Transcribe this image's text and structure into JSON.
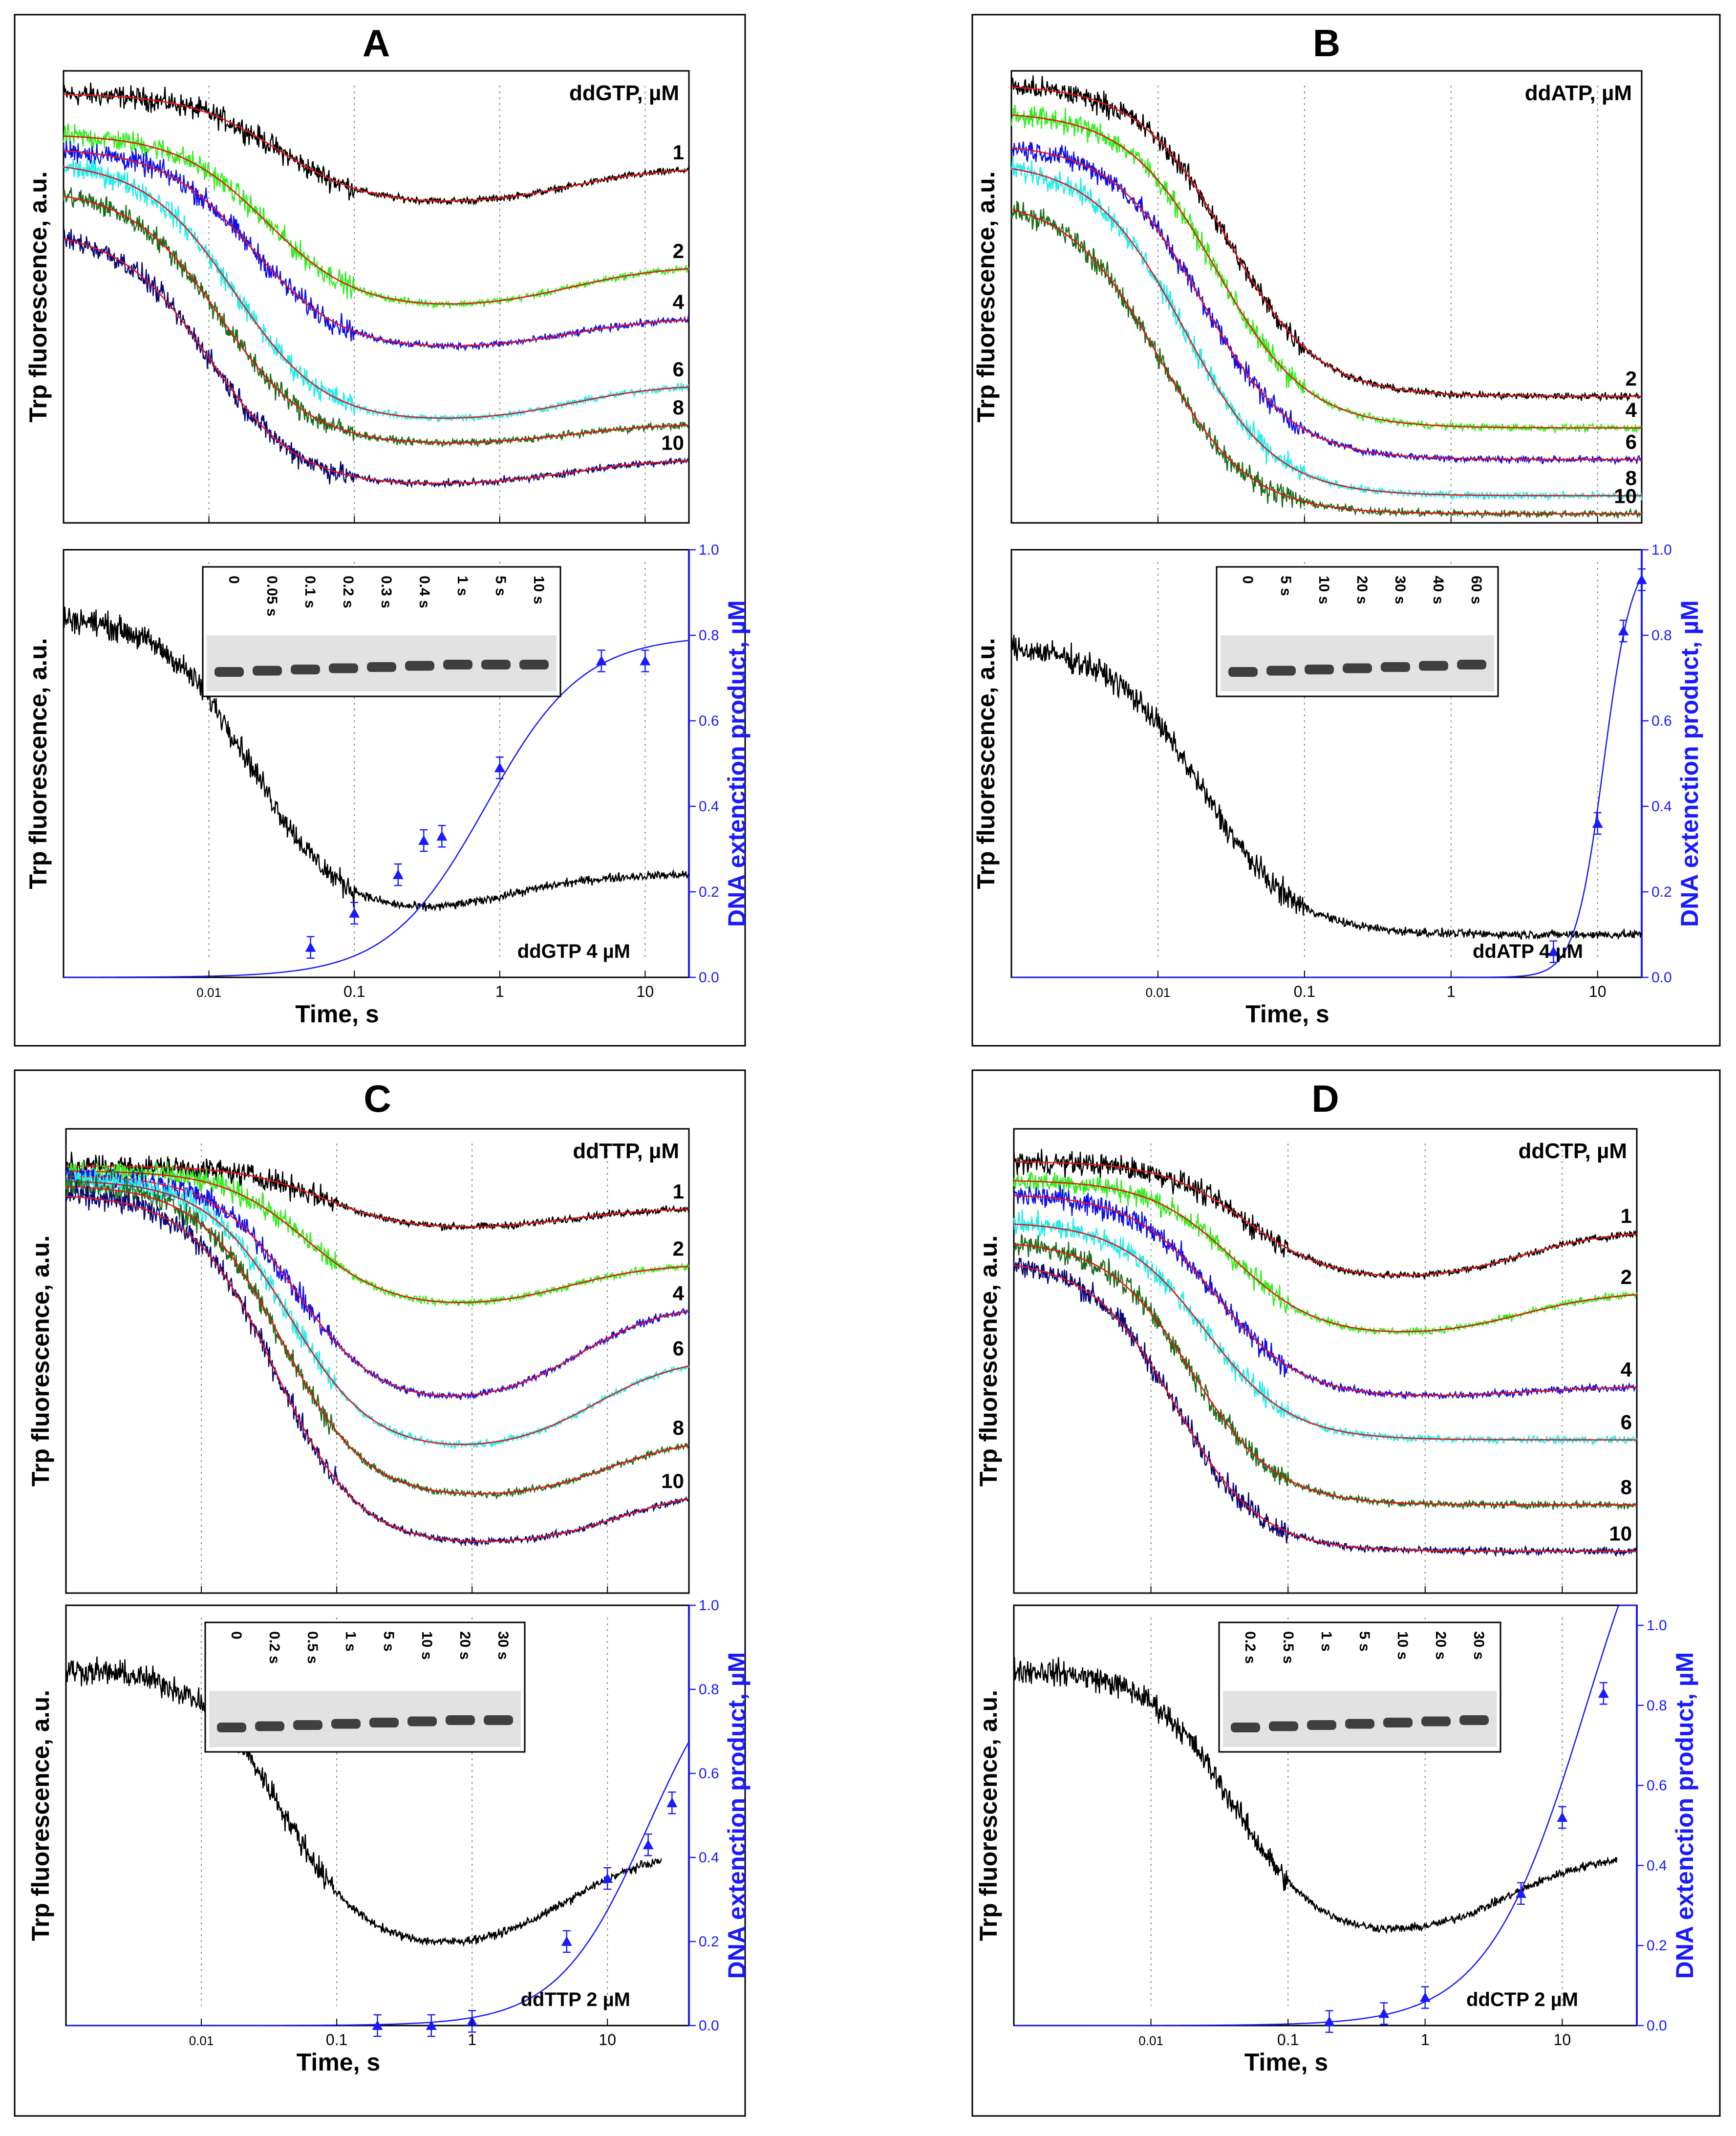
{
  "figure": {
    "time_axis_label": "Time, s",
    "trp_axis_label": "Trp fluorescence, a.u.",
    "dna_axis_label": "DNA extenction product, µM",
    "colors": {
      "c1": "#000000",
      "c2": "#33ee22",
      "c4": "#1010ee",
      "c6": "#22eeee",
      "c8": "#1c6e1c",
      "c10": "#0a0a7a",
      "fit": "#ee1111",
      "product": "#1a1aff"
    }
  },
  "chart_data": [
    {
      "panel": "A",
      "type": "line",
      "xscale": "log",
      "top": {
        "legend_title": "ddGTP, µM",
        "xlim": [
          0.001,
          20
        ],
        "series": [
          {
            "name": "1",
            "color": "#000000",
            "start": 0.95,
            "min": 0.7,
            "end": 0.77,
            "t_drop": 0.03,
            "t_rise": 3.0
          },
          {
            "name": "2",
            "color": "#33ee22",
            "start": 0.86,
            "min": 0.47,
            "end": 0.55,
            "t_drop": 0.025,
            "t_rise": 3.0
          },
          {
            "name": "4",
            "color": "#1010ee",
            "start": 0.83,
            "min": 0.38,
            "end": 0.44,
            "t_drop": 0.02,
            "t_rise": 3.0
          },
          {
            "name": "6",
            "color": "#22eeee",
            "start": 0.8,
            "min": 0.22,
            "end": 0.29,
            "t_drop": 0.015,
            "t_rise": 3.0
          },
          {
            "name": "8",
            "color": "#1c6e1c",
            "start": 0.74,
            "min": 0.17,
            "end": 0.21,
            "t_drop": 0.012,
            "t_rise": 3.0
          },
          {
            "name": "10",
            "color": "#0a0a7a",
            "start": 0.65,
            "min": 0.08,
            "end": 0.13,
            "t_drop": 0.01,
            "t_rise": 3.0
          }
        ]
      },
      "bottom": {
        "trace_label": "ddGTP 4 µM",
        "trp_trace": {
          "start": 0.85,
          "min": 0.13,
          "end": 0.22,
          "t_drop": 0.02,
          "t_rise": 1.0
        },
        "product_ylim": [
          0,
          1.0
        ],
        "product_yticks": [
          0.0,
          0.2,
          0.4,
          0.6,
          0.8,
          1.0
        ],
        "product_points": [
          {
            "x": 0.05,
            "y": 0.07
          },
          {
            "x": 0.1,
            "y": 0.15
          },
          {
            "x": 0.2,
            "y": 0.24
          },
          {
            "x": 0.3,
            "y": 0.32
          },
          {
            "x": 0.4,
            "y": 0.33
          },
          {
            "x": 1,
            "y": 0.49
          },
          {
            "x": 5,
            "y": 0.74
          },
          {
            "x": 10,
            "y": 0.74
          }
        ],
        "product_fit": {
          "ymax": 0.8,
          "t_half": 0.8,
          "n": 1.3
        },
        "gel_lanes": [
          "0",
          "0.05 s",
          "0.1 s",
          "0.2 s",
          "0.3 s",
          "0.4 s",
          "1 s",
          "5 s",
          "10 s"
        ]
      },
      "xticks": [
        "0.01",
        "0.1",
        "1",
        "10"
      ]
    },
    {
      "panel": "B",
      "type": "line",
      "xscale": "log",
      "top": {
        "legend_title": "ddATP, µM",
        "xlim": [
          0.001,
          20
        ],
        "series": [
          {
            "name": "2",
            "color": "#000000",
            "start": 0.97,
            "min": 0.28,
            "end": 0.28,
            "t_drop": 0.03,
            "t_rise": 0
          },
          {
            "name": "4",
            "color": "#33ee22",
            "start": 0.91,
            "min": 0.21,
            "end": 0.21,
            "t_drop": 0.025,
            "t_rise": 0
          },
          {
            "name": "6",
            "color": "#1010ee",
            "start": 0.84,
            "min": 0.14,
            "end": 0.14,
            "t_drop": 0.02,
            "t_rise": 0
          },
          {
            "name": "8",
            "color": "#22eeee",
            "start": 0.8,
            "min": 0.06,
            "end": 0.06,
            "t_drop": 0.015,
            "t_rise": 0
          },
          {
            "name": "10",
            "color": "#1c6e1c",
            "start": 0.72,
            "min": 0.02,
            "end": 0.02,
            "t_drop": 0.01,
            "t_rise": 0
          }
        ]
      },
      "bottom": {
        "trace_label": "ddATP 4 µM",
        "trp_trace": {
          "start": 0.78,
          "min": 0.1,
          "end": 0.1,
          "t_drop": 0.02,
          "t_rise": 0
        },
        "product_ylim": [
          0,
          1.0
        ],
        "product_yticks": [
          0.0,
          0.2,
          0.4,
          0.6,
          0.8,
          1.0
        ],
        "product_points": [
          {
            "x": 5,
            "y": 0.06
          },
          {
            "x": 10,
            "y": 0.36
          },
          {
            "x": 15,
            "y": 0.81
          },
          {
            "x": 20,
            "y": 0.93
          }
        ],
        "product_fit": {
          "ymax": 1.0,
          "t_half": 11,
          "n": 4.5
        },
        "gel_lanes": [
          "0",
          "5 s",
          "10 s",
          "20 s",
          "30 s",
          "40 s",
          "60 s"
        ]
      },
      "xticks": [
        "0.01",
        "0.1",
        "1",
        "10"
      ]
    },
    {
      "panel": "C",
      "type": "line",
      "xscale": "log",
      "top": {
        "legend_title": "ddTTP, µM",
        "xlim": [
          0.001,
          40
        ],
        "series": [
          {
            "name": "1",
            "color": "#000000",
            "start": 0.92,
            "min": 0.78,
            "end": 0.82,
            "t_drop": 0.08,
            "t_rise": 5
          },
          {
            "name": "2",
            "color": "#33ee22",
            "start": 0.91,
            "min": 0.61,
            "end": 0.69,
            "t_drop": 0.06,
            "t_rise": 5
          },
          {
            "name": "4",
            "color": "#1010ee",
            "start": 0.9,
            "min": 0.4,
            "end": 0.58,
            "t_drop": 0.05,
            "t_rise": 6
          },
          {
            "name": "6",
            "color": "#22eeee",
            "start": 0.89,
            "min": 0.3,
            "end": 0.47,
            "t_drop": 0.045,
            "t_rise": 8
          },
          {
            "name": "8",
            "color": "#1c6e1c",
            "start": 0.88,
            "min": 0.2,
            "end": 0.31,
            "t_drop": 0.04,
            "t_rise": 10
          },
          {
            "name": "10",
            "color": "#0a0a7a",
            "start": 0.86,
            "min": 0.1,
            "end": 0.2,
            "t_drop": 0.035,
            "t_rise": 12
          }
        ]
      },
      "bottom": {
        "trace_label": "ddTTP 2 µM",
        "trp_trace": {
          "start": 0.85,
          "min": 0.17,
          "end": 0.37,
          "t_drop": 0.04,
          "t_rise": 5
        },
        "product_ylim": [
          0,
          1.0
        ],
        "product_yticks": [
          0.0,
          0.2,
          0.4,
          0.6,
          0.8,
          1.0
        ],
        "product_points": [
          {
            "x": 0.2,
            "y": 0.0
          },
          {
            "x": 0.5,
            "y": 0.0
          },
          {
            "x": 1,
            "y": 0.01
          },
          {
            "x": 5,
            "y": 0.2
          },
          {
            "x": 10,
            "y": 0.35
          },
          {
            "x": 20,
            "y": 0.43
          },
          {
            "x": 30,
            "y": 0.53
          }
        ],
        "product_fit": {
          "ymax": 0.95,
          "t_half": 20,
          "n": 1.3
        },
        "gel_lanes": [
          "0",
          "0.2 s",
          "0.5 s",
          "1 s",
          "5 s",
          "10 s",
          "20 s",
          "30 s"
        ]
      },
      "xticks": [
        "0.01",
        "0.1",
        "1",
        "10"
      ]
    },
    {
      "panel": "D",
      "type": "line",
      "xscale": "log",
      "top": {
        "legend_title": "ddCTP, µM",
        "xlim": [
          0.001,
          35
        ],
        "series": [
          {
            "name": "1",
            "color": "#000000",
            "start": 0.93,
            "min": 0.67,
            "end": 0.76,
            "t_drop": 0.05,
            "t_rise": 5
          },
          {
            "name": "2",
            "color": "#33ee22",
            "start": 0.89,
            "min": 0.55,
            "end": 0.63,
            "t_drop": 0.04,
            "t_rise": 5
          },
          {
            "name": "4",
            "color": "#1010ee",
            "start": 0.86,
            "min": 0.42,
            "end": 0.44,
            "t_drop": 0.03,
            "t_rise": 5
          },
          {
            "name": "6",
            "color": "#22eeee",
            "start": 0.8,
            "min": 0.33,
            "end": 0.33,
            "t_drop": 0.025,
            "t_rise": 0
          },
          {
            "name": "8",
            "color": "#1c6e1c",
            "start": 0.76,
            "min": 0.19,
            "end": 0.19,
            "t_drop": 0.02,
            "t_rise": 0
          },
          {
            "name": "10",
            "color": "#0a0a7a",
            "start": 0.72,
            "min": 0.09,
            "end": 0.09,
            "t_drop": 0.015,
            "t_rise": 0
          }
        ]
      },
      "bottom": {
        "trace_label": "ddCTP 2 µM",
        "trp_trace": {
          "start": 0.85,
          "min": 0.2,
          "end": 0.37,
          "t_drop": 0.04,
          "t_rise": 4
        },
        "product_ylim": [
          0,
          1.05
        ],
        "product_yticks": [
          0.0,
          0.2,
          0.4,
          0.6,
          0.8,
          1.0
        ],
        "product_points": [
          {
            "x": 0.2,
            "y": 0.01
          },
          {
            "x": 0.5,
            "y": 0.03
          },
          {
            "x": 1,
            "y": 0.07
          },
          {
            "x": 5,
            "y": 0.33
          },
          {
            "x": 10,
            "y": 0.52
          },
          {
            "x": 20,
            "y": 0.83
          }
        ],
        "product_fit": {
          "ymax": 1.6,
          "t_half": 15,
          "n": 1.2
        },
        "gel_lanes": [
          "0.2 s",
          "0.5 s",
          "1 s",
          "5 s",
          "10 s",
          "20 s",
          "30 s"
        ]
      },
      "xticks": [
        "0.01",
        "0.1",
        "1",
        "10"
      ]
    }
  ]
}
